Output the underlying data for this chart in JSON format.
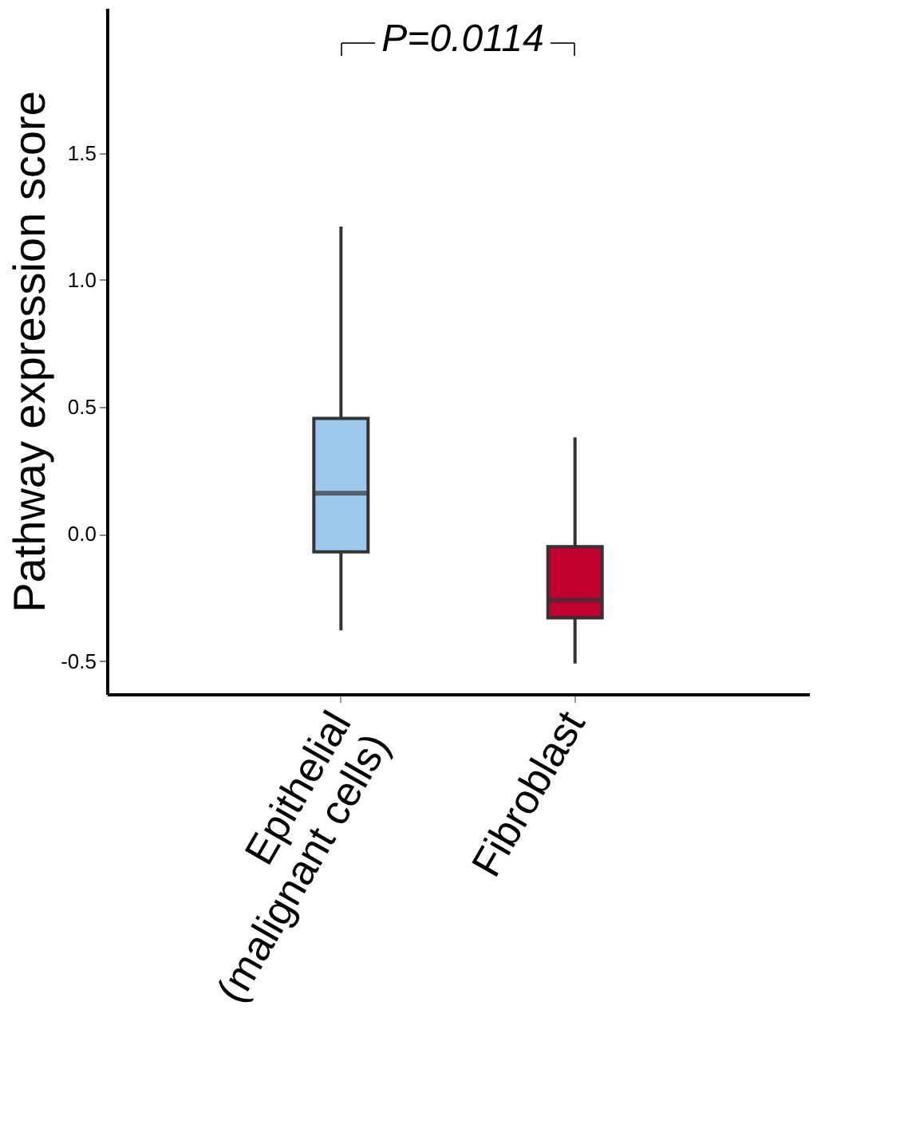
{
  "chart_data": {
    "type": "box",
    "ylabel": "Pathway expression score",
    "categories": [
      "Epithelial\n(malignant cells)",
      "Fibroblast"
    ],
    "colors": [
      "#9fc8ee",
      "#c0002e"
    ],
    "boxes": [
      {
        "low": -0.38,
        "q1": -0.07,
        "median": 0.16,
        "q3": 0.455,
        "high": 1.21
      },
      {
        "low": -0.51,
        "q1": -0.33,
        "median": -0.26,
        "q3": -0.05,
        "high": 0.38
      }
    ],
    "ylim": [
      -0.63,
      2.07
    ],
    "yticks": [
      {
        "value": -0.5,
        "label": "-0.5"
      },
      {
        "value": 0,
        "label": "0.0"
      },
      {
        "value": 0.5,
        "label": "0.5"
      },
      {
        "value": 1,
        "label": "1.0"
      },
      {
        "value": 1.5,
        "label": "1.5"
      }
    ],
    "grid": false,
    "annotations": [
      "P=0.0114"
    ]
  }
}
